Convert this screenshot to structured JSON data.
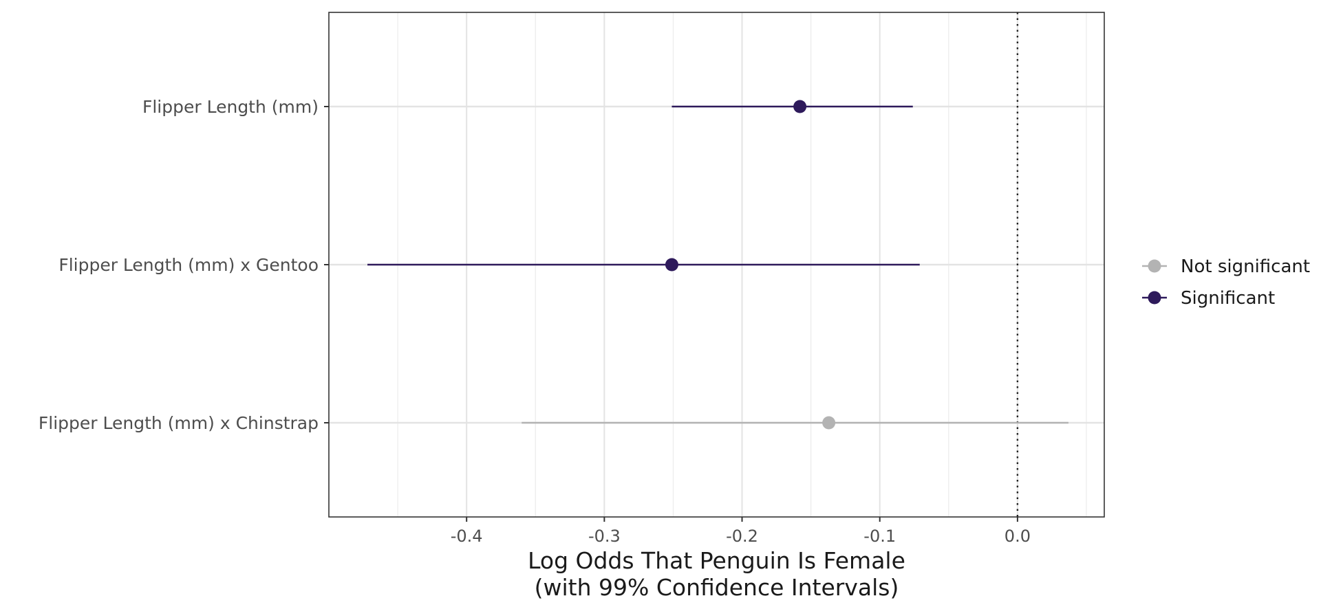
{
  "chart_data": {
    "type": "scatter",
    "title": "",
    "xlabel_lines": [
      "Log Odds That Penguin Is Female",
      "(with 99% Confidence Intervals)"
    ],
    "ylabel": "",
    "xlim": [
      -0.5,
      0.063
    ],
    "x_ticks": [
      -0.4,
      -0.3,
      -0.2,
      -0.1,
      0.0
    ],
    "x_tick_labels": [
      "-0.4",
      "-0.3",
      "-0.2",
      "-0.1",
      "0.0"
    ],
    "reference_line": {
      "x": 0.0,
      "style": "dotted"
    },
    "grid": true,
    "categories": [
      "Flipper Length (mm)",
      "Flipper Length (mm) x Gentoo",
      "Flipper Length (mm) x Chinstrap"
    ],
    "points": [
      {
        "category": "Flipper Length (mm)",
        "estimate": -0.158,
        "low": -0.251,
        "high": -0.076,
        "group": "Significant"
      },
      {
        "category": "Flipper Length (mm) x Gentoo",
        "estimate": -0.251,
        "low": -0.472,
        "high": -0.071,
        "group": "Significant"
      },
      {
        "category": "Flipper Length (mm) x Chinstrap",
        "estimate": -0.137,
        "low": -0.36,
        "high": 0.037,
        "group": "Not significant"
      }
    ],
    "legend": {
      "position": "right",
      "entries": [
        {
          "label": "Not significant",
          "color": "#b3b3b3"
        },
        {
          "label": "Significant",
          "color": "#2e1a5b"
        }
      ]
    }
  }
}
